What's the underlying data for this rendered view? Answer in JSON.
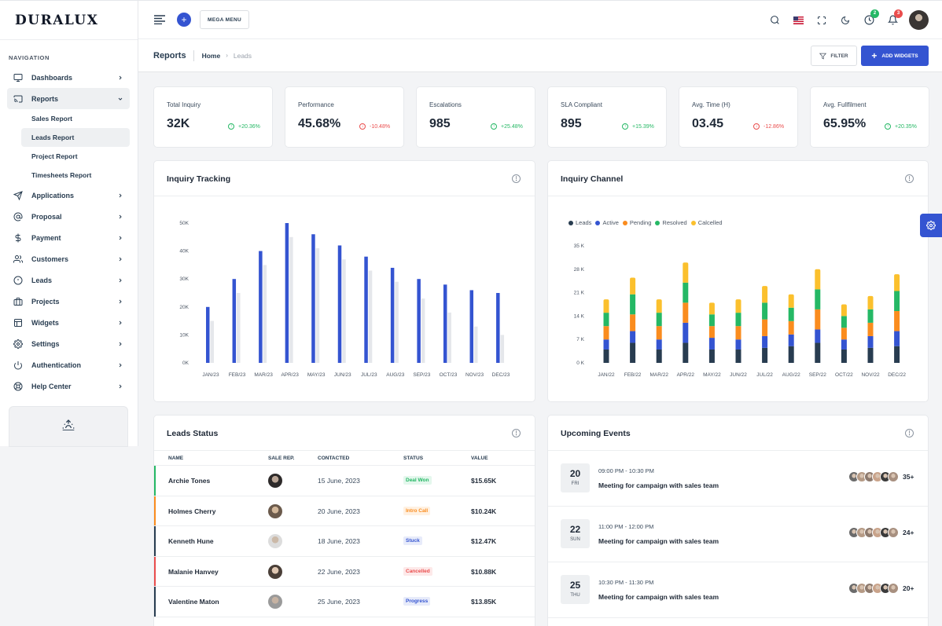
{
  "brand": {
    "logo": "DURALUX"
  },
  "sidebar": {
    "caption": "NAVIGATION",
    "items": [
      {
        "label": "Dashboards",
        "icon": "monitor-icon"
      },
      {
        "label": "Reports",
        "icon": "cast-icon"
      },
      {
        "label": "Applications",
        "icon": "send-icon"
      },
      {
        "label": "Proposal",
        "icon": "at-sign-icon"
      },
      {
        "label": "Payment",
        "icon": "dollar-icon"
      },
      {
        "label": "Customers",
        "icon": "users-icon"
      },
      {
        "label": "Leads",
        "icon": "alert-circle-icon"
      },
      {
        "label": "Projects",
        "icon": "briefcase-icon"
      },
      {
        "label": "Widgets",
        "icon": "layout-icon"
      },
      {
        "label": "Settings",
        "icon": "settings-icon"
      },
      {
        "label": "Authentication",
        "icon": "power-icon"
      },
      {
        "label": "Help Center",
        "icon": "life-buoy-icon"
      }
    ],
    "subitems": [
      {
        "label": "Sales Report"
      },
      {
        "label": "Leads Report"
      },
      {
        "label": "Project Report"
      },
      {
        "label": "Timesheets Report"
      }
    ]
  },
  "header": {
    "mega_menu": "MEGA MENU",
    "notifications": {
      "timer_badge": "2",
      "bell_badge": "3"
    }
  },
  "page": {
    "title": "Reports",
    "breadcrumb_home": "Home",
    "breadcrumb_current": "Leads",
    "filter": "FILTER",
    "add_widgets": "ADD WIDGETS"
  },
  "stats": [
    {
      "label": "Total Inquiry",
      "value": "32K",
      "change": "+20.36%",
      "dir": "up"
    },
    {
      "label": "Performance",
      "value": "45.68%",
      "change": "-10.48%",
      "dir": "down"
    },
    {
      "label": "Escalations",
      "value": "985",
      "change": "+25.48%",
      "dir": "up"
    },
    {
      "label": "SLA Compliant",
      "value": "895",
      "change": "+15.39%",
      "dir": "up"
    },
    {
      "label": "Avg. Time (H)",
      "value": "03.45",
      "change": "-12.86%",
      "dir": "down"
    },
    {
      "label": "Avg. Fullfilment",
      "value": "65.95%",
      "change": "+20.35%",
      "dir": "up"
    }
  ],
  "inquiry_tracking": {
    "title": "Inquiry Tracking"
  },
  "inquiry_channel": {
    "title": "Inquiry Channel"
  },
  "chart_data": [
    {
      "type": "bar",
      "title": "Inquiry Tracking",
      "categories": [
        "JAN/23",
        "FEB/23",
        "MAR/23",
        "APR/23",
        "MAY/23",
        "JUN/23",
        "JUL/23",
        "AUG/23",
        "SEP/23",
        "OCT/23",
        "NOV/23",
        "DEC/23"
      ],
      "y_ticks": [
        "0K",
        "10K",
        "20K",
        "30K",
        "40K",
        "50K"
      ],
      "ylim": [
        0,
        50000
      ],
      "series": [
        {
          "values": [
            20000,
            30000,
            40000,
            50000,
            46000,
            42000,
            38000,
            34000,
            30000,
            28000,
            26000,
            25000
          ],
          "color": "#3454d1"
        },
        {
          "values": [
            15000,
            25000,
            35000,
            45000,
            41000,
            37000,
            33000,
            29000,
            23000,
            18000,
            13000,
            10000
          ],
          "color": "#e5e7eb"
        }
      ]
    },
    {
      "type": "bar",
      "stacked": true,
      "title": "Inquiry Channel",
      "categories": [
        "JAN/22",
        "FEB/22",
        "MAR/22",
        "APR/22",
        "MAY/22",
        "JUN/22",
        "JUL/22",
        "AUG/22",
        "SEP/22",
        "OCT/22",
        "NOV/22",
        "DEC/22"
      ],
      "y_ticks": [
        "0 K",
        "7 K",
        "14 K",
        "21 K",
        "28 K",
        "35 K"
      ],
      "ylim": [
        0,
        35000
      ],
      "legend_position": "top-left",
      "series": [
        {
          "name": "Leads",
          "color": "#283c50",
          "values": [
            4000,
            6000,
            4000,
            6000,
            4000,
            4000,
            4500,
            5000,
            6000,
            4000,
            4500,
            5000
          ]
        },
        {
          "name": "Active",
          "color": "#3454d1",
          "values": [
            3000,
            3500,
            3000,
            6000,
            3500,
            3000,
            3500,
            3500,
            4000,
            3000,
            3500,
            4500
          ]
        },
        {
          "name": "Pending",
          "color": "#fa8c1e",
          "values": [
            4000,
            5000,
            4000,
            6000,
            3500,
            4000,
            5000,
            4000,
            6000,
            3500,
            4000,
            6000
          ]
        },
        {
          "name": "Resolved",
          "color": "#25b865",
          "values": [
            4000,
            6000,
            4000,
            6000,
            3500,
            4000,
            5000,
            4000,
            6000,
            3500,
            4000,
            6000
          ]
        },
        {
          "name": "Calcelled",
          "color": "#fbc02d",
          "values": [
            4000,
            5000,
            4000,
            6000,
            3500,
            4000,
            5000,
            4000,
            6000,
            3500,
            4000,
            5000
          ]
        }
      ]
    }
  ],
  "leads_status": {
    "title": "Leads Status",
    "columns": [
      "NAME",
      "SALE REP.",
      "CONTACTED",
      "STATUS",
      "VALUE"
    ],
    "rows": [
      {
        "name": "Archie Tones",
        "date": "15 June, 2023",
        "status": "Deal Won",
        "value": "$15.65K",
        "accent": "#25b865",
        "status_bg": "#e4f7ed",
        "status_fg": "#25b865"
      },
      {
        "name": "Holmes Cherry",
        "date": "20 June, 2023",
        "status": "Intro Call",
        "value": "$10.24K",
        "accent": "#fa8c1e",
        "status_bg": "#fff1e2",
        "status_fg": "#fa8c1e"
      },
      {
        "name": "Kenneth Hune",
        "date": "18 June, 2023",
        "status": "Stuck",
        "value": "$12.47K",
        "accent": "#283c50",
        "status_bg": "#e7ebfa",
        "status_fg": "#3454d1"
      },
      {
        "name": "Malanie Hanvey",
        "date": "22 June, 2023",
        "status": "Cancelled",
        "value": "$10.88K",
        "accent": "#ea4d4d",
        "status_bg": "#fde9e9",
        "status_fg": "#ea4d4d"
      },
      {
        "name": "Valentine Maton",
        "date": "25 June, 2023",
        "status": "Progress",
        "value": "$13.85K",
        "accent": "#283c50",
        "status_bg": "#e7ebfa",
        "status_fg": "#3454d1"
      }
    ]
  },
  "upcoming_events": {
    "title": "Upcoming Events",
    "items": [
      {
        "day": "20",
        "weekday": "FRI",
        "time": "09:00 PM - 10:30 PM",
        "title": "Meeting for campaign with sales team",
        "count": "35+"
      },
      {
        "day": "22",
        "weekday": "SUN",
        "time": "11:00 PM - 12:00 PM",
        "title": "Meeting for campaign with sales team",
        "count": "24+"
      },
      {
        "day": "25",
        "weekday": "THU",
        "time": "10:30 PM - 11:30 PM",
        "title": "Meeting for campaign with sales team",
        "count": "20+"
      }
    ]
  }
}
